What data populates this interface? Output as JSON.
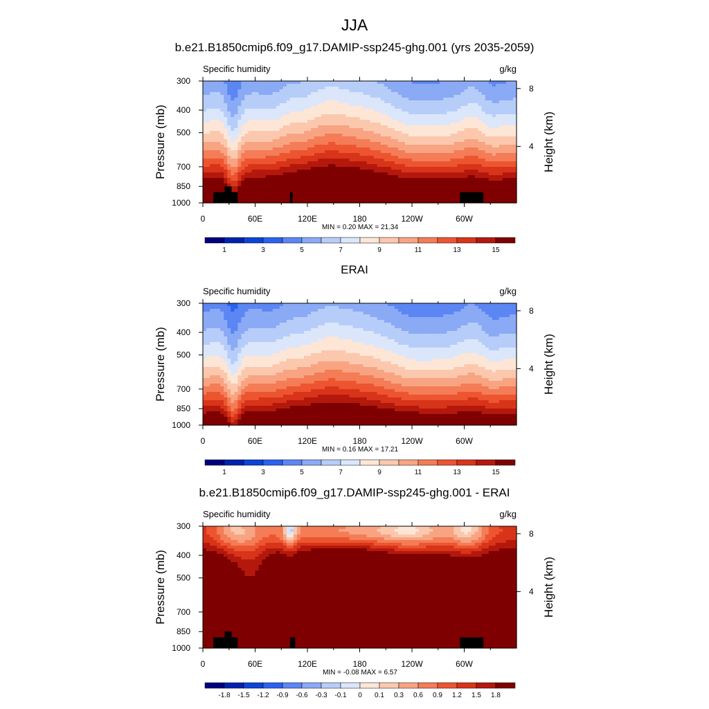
{
  "figure": {
    "title": "JJA",
    "units": "g/kg",
    "variable": "Specific humidity",
    "left_axis_label": "Pressure (mb)",
    "right_axis_label": "Height (km)"
  },
  "chart_data": [
    {
      "type": "heatmap",
      "title": "b.e21.B1850cmip6.f09_g17.DAMIP-ssp245-ghg.001 (yrs 2035-2059)",
      "left_string": "Specific humidity",
      "right_string": "g/kg",
      "ylabel": "Pressure (mb)",
      "ylabel_right": "Height (km)",
      "x_ticks": [
        "0",
        "60E",
        "120E",
        "180",
        "120W",
        "60W"
      ],
      "x_tick_values": [
        0,
        60,
        120,
        180,
        240,
        300
      ],
      "xlim": [
        0,
        360
      ],
      "y_ticks": [
        "300",
        "400",
        "500",
        "700",
        "850",
        "1000"
      ],
      "y_tick_values": [
        300,
        400,
        500,
        700,
        850,
        1000
      ],
      "ylim": [
        1000,
        300
      ],
      "y_scale": "log",
      "right_ticks": [
        "8",
        "4"
      ],
      "right_tick_values": [
        8,
        4
      ],
      "min_max_text": "MIN =   0.20  MAX =  21.34",
      "stats": {
        "min": 0.2,
        "max": 21.34
      },
      "levels": [
        0.5,
        1,
        2,
        3,
        4,
        5,
        6,
        7,
        8,
        9,
        10,
        11,
        12,
        13,
        14,
        15
      ],
      "colorbar_labels": [
        "1",
        "3",
        "5",
        "7",
        "9",
        "11",
        "13",
        "15"
      ],
      "colorbar_label_index": [
        1,
        3,
        5,
        7,
        9,
        11,
        13,
        15
      ],
      "field": "model",
      "grid": false
    },
    {
      "type": "heatmap",
      "title": "ERAI",
      "left_string": "Specific humidity",
      "right_string": "g/kg",
      "ylabel": "Pressure (mb)",
      "ylabel_right": "Height (km)",
      "x_ticks": [
        "0",
        "60E",
        "120E",
        "180",
        "120W",
        "60W"
      ],
      "x_tick_values": [
        0,
        60,
        120,
        180,
        240,
        300
      ],
      "xlim": [
        0,
        360
      ],
      "y_ticks": [
        "300",
        "400",
        "500",
        "700",
        "850",
        "1000"
      ],
      "y_tick_values": [
        300,
        400,
        500,
        700,
        850,
        1000
      ],
      "ylim": [
        1000,
        300
      ],
      "y_scale": "log",
      "right_ticks": [
        "8",
        "4"
      ],
      "right_tick_values": [
        8,
        4
      ],
      "min_max_text": "MIN =   0.16  MAX =  17.21",
      "stats": {
        "min": 0.16,
        "max": 17.21
      },
      "levels": [
        0.5,
        1,
        2,
        3,
        4,
        5,
        6,
        7,
        8,
        9,
        10,
        11,
        12,
        13,
        14,
        15
      ],
      "colorbar_labels": [
        "1",
        "3",
        "5",
        "7",
        "9",
        "11",
        "13",
        "15"
      ],
      "colorbar_label_index": [
        1,
        3,
        5,
        7,
        9,
        11,
        13,
        15
      ],
      "field": "obs",
      "grid": false
    },
    {
      "type": "heatmap",
      "title": "b.e21.B1850cmip6.f09_g17.DAMIP-ssp245-ghg.001 - ERAI",
      "left_string": "Specific humidity",
      "right_string": "g/kg",
      "ylabel": "Pressure (mb)",
      "ylabel_right": "Height (km)",
      "x_ticks": [
        "0",
        "60E",
        "120E",
        "180",
        "120W",
        "60W"
      ],
      "x_tick_values": [
        0,
        60,
        120,
        180,
        240,
        300
      ],
      "xlim": [
        0,
        360
      ],
      "y_ticks": [
        "300",
        "400",
        "500",
        "700",
        "850",
        "1000"
      ],
      "y_tick_values": [
        300,
        400,
        500,
        700,
        850,
        1000
      ],
      "ylim": [
        1000,
        300
      ],
      "y_scale": "log",
      "right_ticks": [
        "8",
        "4"
      ],
      "right_tick_values": [
        8,
        4
      ],
      "min_max_text": "MIN =  -0.08  MAX =   6.57",
      "stats": {
        "min": -0.08,
        "max": 6.57
      },
      "levels": [
        -1.8,
        -1.5,
        -1.2,
        -0.9,
        -0.6,
        -0.3,
        -0.1,
        0,
        0.1,
        0.3,
        0.6,
        0.9,
        1.2,
        1.5,
        1.8
      ],
      "colorbar_labels": [
        "-1.8",
        "-1.5",
        "-1.2",
        "-0.9",
        "-0.6",
        "-0.3",
        "-0.1",
        "0",
        "0.1",
        "0.3",
        "0.6",
        "0.9",
        "1.2",
        "1.5",
        "1.8"
      ],
      "colorbar_label_index": [
        1,
        2,
        3,
        4,
        5,
        6,
        7,
        8,
        9,
        10,
        11,
        12,
        13,
        14,
        15
      ],
      "field": "diff",
      "grid": false
    }
  ],
  "colormap": [
    "#00007f",
    "#0022b0",
    "#0d44d8",
    "#2a62f0",
    "#5b86f4",
    "#8aaaf6",
    "#b7cdf9",
    "#dbe6fb",
    "#fde6d6",
    "#fbc8ae",
    "#f8a482",
    "#f47c56",
    "#ec5530",
    "#d8341a",
    "#b4180c",
    "#7f0000"
  ],
  "terrain_color": "#000000"
}
